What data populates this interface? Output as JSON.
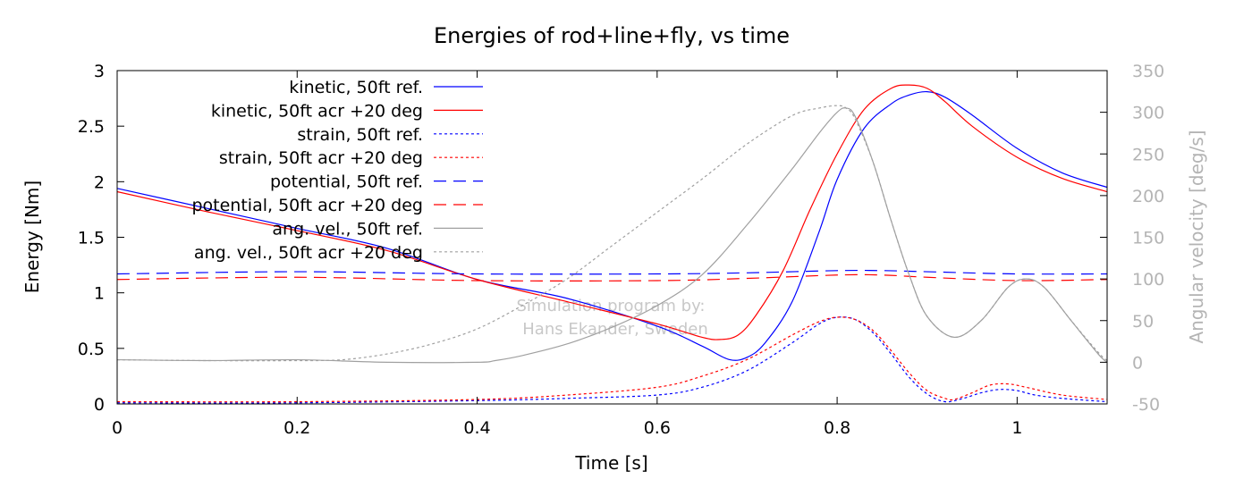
{
  "chart_data": {
    "type": "line",
    "title": "Energies of rod+line+fly, vs time",
    "xlabel": "Time [s]",
    "ylabel": "Energy [Nm]",
    "y2label": "Angular velocity [deg/s]",
    "xlim": [
      0,
      1.1
    ],
    "ylim": [
      0,
      3
    ],
    "y2lim": [
      -50,
      350
    ],
    "xticks": [
      "0",
      "0.2",
      "0.4",
      "0.6",
      "0.8",
      "1"
    ],
    "yticks": [
      "0",
      "0.5",
      "1",
      "1.5",
      "2",
      "2.5",
      "3"
    ],
    "y2ticks": [
      "-50",
      "0",
      "50",
      "100",
      "150",
      "200",
      "250",
      "300",
      "350"
    ],
    "grid": false,
    "legend_position": "top-left",
    "watermark": [
      "Simulation program by:",
      "Hans Ekander, Sweden"
    ],
    "colors": {
      "ref": "#0000ff",
      "acr": "#ff0000",
      "ang": "#a0a0a0",
      "y2axis": "#b4b4b4"
    },
    "series": [
      {
        "name": "kinetic, 50ft ref.",
        "axis": "y1",
        "color": "#0000ff",
        "dash": "solid",
        "x": [
          0,
          0.1,
          0.2,
          0.3,
          0.4,
          0.5,
          0.6,
          0.65,
          0.68,
          0.7,
          0.72,
          0.75,
          0.78,
          0.8,
          0.83,
          0.86,
          0.88,
          0.9,
          0.92,
          0.95,
          1.0,
          1.05,
          1.1
        ],
        "y": [
          1.94,
          1.76,
          1.58,
          1.4,
          1.12,
          0.95,
          0.7,
          0.52,
          0.4,
          0.42,
          0.55,
          0.92,
          1.55,
          2.02,
          2.48,
          2.7,
          2.78,
          2.81,
          2.76,
          2.6,
          2.3,
          2.08,
          1.95
        ]
      },
      {
        "name": "kinetic, 50ft acr +20 deg",
        "axis": "y1",
        "color": "#ff0000",
        "dash": "solid",
        "x": [
          0,
          0.1,
          0.2,
          0.3,
          0.4,
          0.5,
          0.6,
          0.65,
          0.67,
          0.69,
          0.71,
          0.74,
          0.77,
          0.8,
          0.83,
          0.86,
          0.88,
          0.9,
          0.92,
          0.95,
          1.0,
          1.05,
          1.1
        ],
        "y": [
          1.91,
          1.73,
          1.56,
          1.38,
          1.12,
          0.92,
          0.72,
          0.6,
          0.58,
          0.62,
          0.8,
          1.2,
          1.75,
          2.25,
          2.65,
          2.84,
          2.87,
          2.84,
          2.72,
          2.5,
          2.22,
          2.03,
          1.91
        ]
      },
      {
        "name": "strain, 50ft ref.",
        "axis": "y1",
        "color": "#0000ff",
        "dash": "dotted",
        "x": [
          0,
          0.2,
          0.4,
          0.5,
          0.6,
          0.65,
          0.7,
          0.75,
          0.78,
          0.8,
          0.82,
          0.84,
          0.86,
          0.88,
          0.9,
          0.92,
          0.94,
          0.96,
          0.98,
          1.0,
          1.02,
          1.05,
          1.1
        ],
        "y": [
          0.01,
          0.01,
          0.03,
          0.05,
          0.08,
          0.15,
          0.3,
          0.55,
          0.72,
          0.78,
          0.76,
          0.64,
          0.45,
          0.24,
          0.09,
          0.02,
          0.05,
          0.1,
          0.13,
          0.12,
          0.08,
          0.05,
          0.02
        ]
      },
      {
        "name": "strain, 50ft acr +20 deg",
        "axis": "y1",
        "color": "#ff0000",
        "dash": "dotted",
        "x": [
          0,
          0.2,
          0.4,
          0.5,
          0.6,
          0.65,
          0.7,
          0.75,
          0.78,
          0.8,
          0.82,
          0.84,
          0.86,
          0.88,
          0.9,
          0.92,
          0.93,
          0.95,
          0.97,
          0.99,
          1.01,
          1.05,
          1.1
        ],
        "y": [
          0.02,
          0.02,
          0.04,
          0.08,
          0.15,
          0.25,
          0.4,
          0.62,
          0.74,
          0.78,
          0.76,
          0.66,
          0.48,
          0.28,
          0.12,
          0.05,
          0.04,
          0.1,
          0.17,
          0.18,
          0.15,
          0.08,
          0.04
        ]
      },
      {
        "name": "potential, 50ft ref.",
        "axis": "y1",
        "color": "#0000ff",
        "dash": "dashed",
        "x": [
          0,
          0.2,
          0.4,
          0.6,
          0.7,
          0.8,
          0.85,
          0.9,
          1.0,
          1.1
        ],
        "y": [
          1.17,
          1.19,
          1.17,
          1.17,
          1.18,
          1.2,
          1.2,
          1.19,
          1.17,
          1.17
        ]
      },
      {
        "name": "potential, 50ft acr +20 deg",
        "axis": "y1",
        "color": "#ff0000",
        "dash": "dashed",
        "x": [
          0,
          0.2,
          0.4,
          0.6,
          0.7,
          0.8,
          0.85,
          0.9,
          1.0,
          1.1
        ],
        "y": [
          1.12,
          1.14,
          1.11,
          1.11,
          1.13,
          1.16,
          1.16,
          1.14,
          1.11,
          1.12
        ]
      },
      {
        "name": "ang. vel., 50ft ref.",
        "axis": "y2",
        "color": "#a0a0a0",
        "dash": "solid",
        "x": [
          0,
          0.1,
          0.2,
          0.3,
          0.4,
          0.42,
          0.45,
          0.5,
          0.55,
          0.6,
          0.65,
          0.7,
          0.75,
          0.78,
          0.8,
          0.81,
          0.82,
          0.84,
          0.86,
          0.88,
          0.9,
          0.93,
          0.96,
          0.99,
          1.01,
          1.03,
          1.06,
          1.09,
          1.1
        ],
        "y": [
          3,
          2,
          3,
          0,
          0,
          2,
          8,
          22,
          42,
          68,
          105,
          165,
          232,
          275,
          300,
          305,
          295,
          240,
          170,
          105,
          55,
          30,
          50,
          90,
          100,
          90,
          50,
          10,
          0
        ]
      },
      {
        "name": "ang. vel., 50ft acr +20 deg",
        "axis": "y2",
        "color": "#a0a0a0",
        "dash": "dotted",
        "x": [
          0,
          0.1,
          0.2,
          0.25,
          0.3,
          0.35,
          0.4,
          0.45,
          0.5,
          0.55,
          0.6,
          0.65,
          0.7,
          0.75,
          0.78,
          0.8,
          0.81,
          0.82,
          0.84,
          0.86,
          0.88,
          0.9,
          0.93,
          0.96,
          0.99,
          1.01,
          1.03,
          1.06,
          1.09,
          1.1
        ],
        "y": [
          3,
          2,
          2,
          3,
          10,
          22,
          40,
          68,
          100,
          140,
          180,
          220,
          262,
          296,
          305,
          308,
          305,
          292,
          240,
          170,
          105,
          55,
          30,
          50,
          90,
          100,
          90,
          50,
          12,
          2
        ]
      }
    ]
  }
}
